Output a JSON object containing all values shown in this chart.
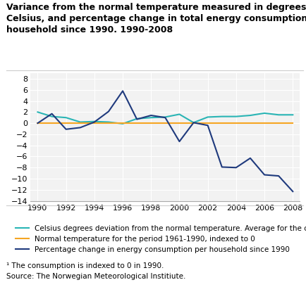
{
  "title_line1": "Variance from the normal temperature measured in degrees",
  "title_line2": "Celsius, and percentage change in total energy consumption per",
  "title_line3": "household since 1990. 1990-2008",
  "years": [
    1990,
    1991,
    1992,
    1993,
    1994,
    1995,
    1996,
    1997,
    1998,
    1999,
    2000,
    2001,
    2002,
    2003,
    2004,
    2005,
    2006,
    2007,
    2008
  ],
  "celsius_deviation": [
    2.0,
    1.2,
    1.0,
    0.2,
    0.3,
    0.2,
    -0.1,
    0.8,
    1.0,
    1.1,
    1.6,
    0.1,
    1.1,
    1.2,
    1.2,
    1.4,
    1.8,
    1.5,
    1.5
  ],
  "normal_temp": [
    0.0,
    0.0,
    0.0,
    0.0,
    0.0,
    0.0,
    0.0,
    0.0,
    0.0,
    0.0,
    0.0,
    0.0,
    0.0,
    0.0,
    0.0,
    0.0,
    0.0,
    0.0,
    0.0
  ],
  "energy_consumption": [
    0.0,
    1.7,
    -1.1,
    -0.8,
    0.2,
    2.1,
    5.8,
    0.7,
    1.4,
    1.0,
    -3.3,
    0.1,
    -0.4,
    -7.9,
    -8.0,
    -6.3,
    -9.3,
    -9.5,
    -12.3
  ],
  "celsius_color": "#2ab5b5",
  "normal_color": "#f5a623",
  "energy_color": "#1f3a7d",
  "ylim": [
    -14,
    9
  ],
  "yticks": [
    -14,
    -12,
    -10,
    -8,
    -6,
    -4,
    -2,
    0,
    2,
    4,
    6,
    8
  ],
  "xticks": [
    1990,
    1992,
    1994,
    1996,
    1998,
    2000,
    2002,
    2004,
    2006,
    2008
  ],
  "xlim_left": 1989.5,
  "xlim_right": 2008.5,
  "legend_celsius": "Celsius degrees deviation from the normal temperature. Average for the country",
  "legend_normal": "Normal temperature for the period 1961-1990, indexed to 0",
  "legend_energy": "Percentage change in energy consumption per household since 1990",
  "footnote1": "¹ The consumption is indexed to 0 in 1990.",
  "footnote2": "Source: The Norwegian Meteorological Institiute.",
  "bg_color": "#f2f2f2",
  "title_fontsize": 9.0,
  "legend_fontsize": 7.5,
  "tick_fontsize": 8.0,
  "footnote_fontsize": 7.5,
  "line_width": 1.5
}
